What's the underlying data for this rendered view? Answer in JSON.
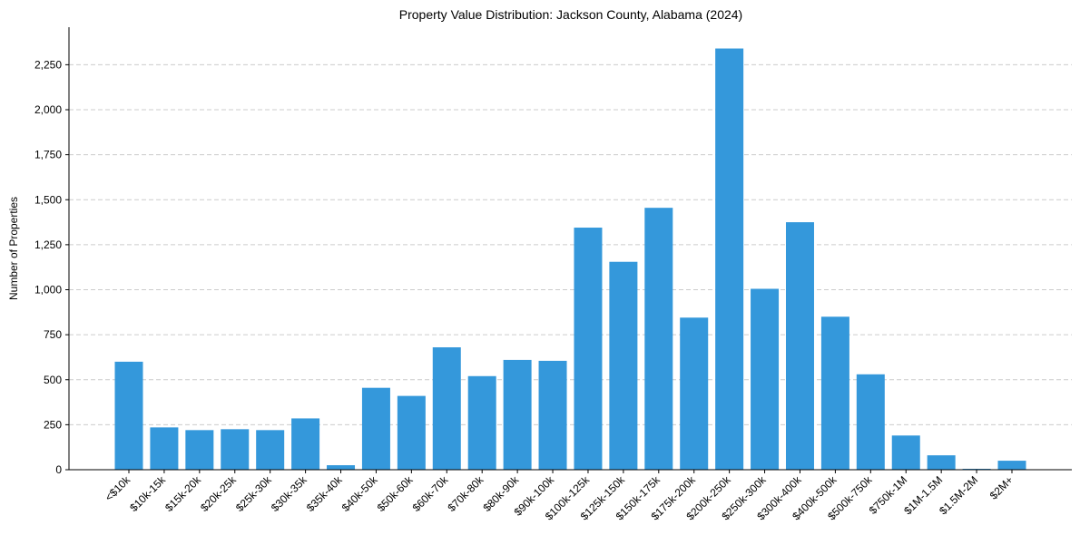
{
  "chart_data": {
    "type": "bar",
    "title": "Property Value Distribution: Jackson County, Alabama (2024)",
    "xlabel": "",
    "ylabel": "Number of Properties",
    "ylim": [
      0,
      2350
    ],
    "yticks": [
      0,
      250,
      500,
      750,
      1000,
      1250,
      1500,
      1750,
      2000,
      2250
    ],
    "ytick_labels": [
      "0",
      "250",
      "500",
      "750",
      "1,000",
      "1,250",
      "1,500",
      "1,750",
      "2,000",
      "2,250"
    ],
    "grid": "horizontal dashed",
    "color": "#3498db",
    "categories": [
      "<$10k",
      "$10k-15k",
      "$15k-20k",
      "$20k-25k",
      "$25k-30k",
      "$30k-35k",
      "$35k-40k",
      "$40k-50k",
      "$50k-60k",
      "$60k-70k",
      "$70k-80k",
      "$80k-90k",
      "$90k-100k",
      "$100k-125k",
      "$125k-150k",
      "$150k-175k",
      "$175k-200k",
      "$200k-250k",
      "$250k-300k",
      "$300k-400k",
      "$400k-500k",
      "$500k-750k",
      "$750k-1M",
      "$1M-1.5M",
      "$1.5M-2M",
      "$2M+"
    ],
    "values": [
      600,
      235,
      220,
      225,
      220,
      285,
      25,
      455,
      410,
      680,
      520,
      610,
      605,
      1345,
      1155,
      1455,
      845,
      2340,
      1005,
      1375,
      850,
      530,
      190,
      80,
      5,
      50
    ]
  }
}
